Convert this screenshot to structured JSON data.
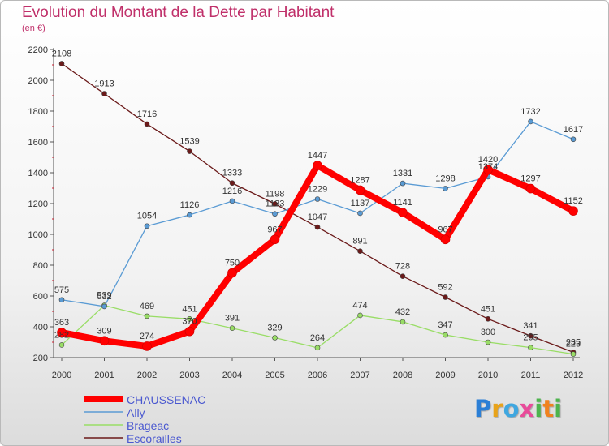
{
  "title": "Evolution du Montant de la Dette par Habitant",
  "subtitle": "(en €)",
  "logo_text": "Proxiti",
  "chart_data": {
    "type": "line",
    "x": [
      "2000",
      "2001",
      "2002",
      "2003",
      "2004",
      "2005",
      "2006",
      "2007",
      "2008",
      "2009",
      "2010",
      "2011",
      "2012"
    ],
    "ylim": [
      200,
      2200
    ],
    "yticks": [
      200,
      400,
      600,
      800,
      1000,
      1200,
      1400,
      1600,
      1800,
      2000,
      2200
    ],
    "grid": false,
    "legend_position": "bottom-left",
    "series": [
      {
        "name": "CHAUSSENAC",
        "color": "#ff0000",
        "values": [
          363,
          309,
          274,
          370,
          750,
          967,
          1447,
          1287,
          1141,
          967,
          1420,
          1297,
          1152
        ]
      },
      {
        "name": "Ally",
        "color": "#5a9bd4",
        "values": [
          575,
          532,
          1054,
          1126,
          1216,
          1133,
          1229,
          1137,
          1331,
          1298,
          1374,
          1732,
          1617
        ]
      },
      {
        "name": "Brageac",
        "color": "#99dd66",
        "values": [
          282,
          539,
          469,
          451,
          391,
          329,
          264,
          474,
          432,
          347,
          300,
          265,
          223
        ]
      },
      {
        "name": "Escorailles",
        "color": "#6b1a1a",
        "values": [
          2108,
          1913,
          1716,
          1539,
          1333,
          1198,
          1047,
          891,
          728,
          592,
          451,
          341,
          235
        ]
      }
    ]
  }
}
